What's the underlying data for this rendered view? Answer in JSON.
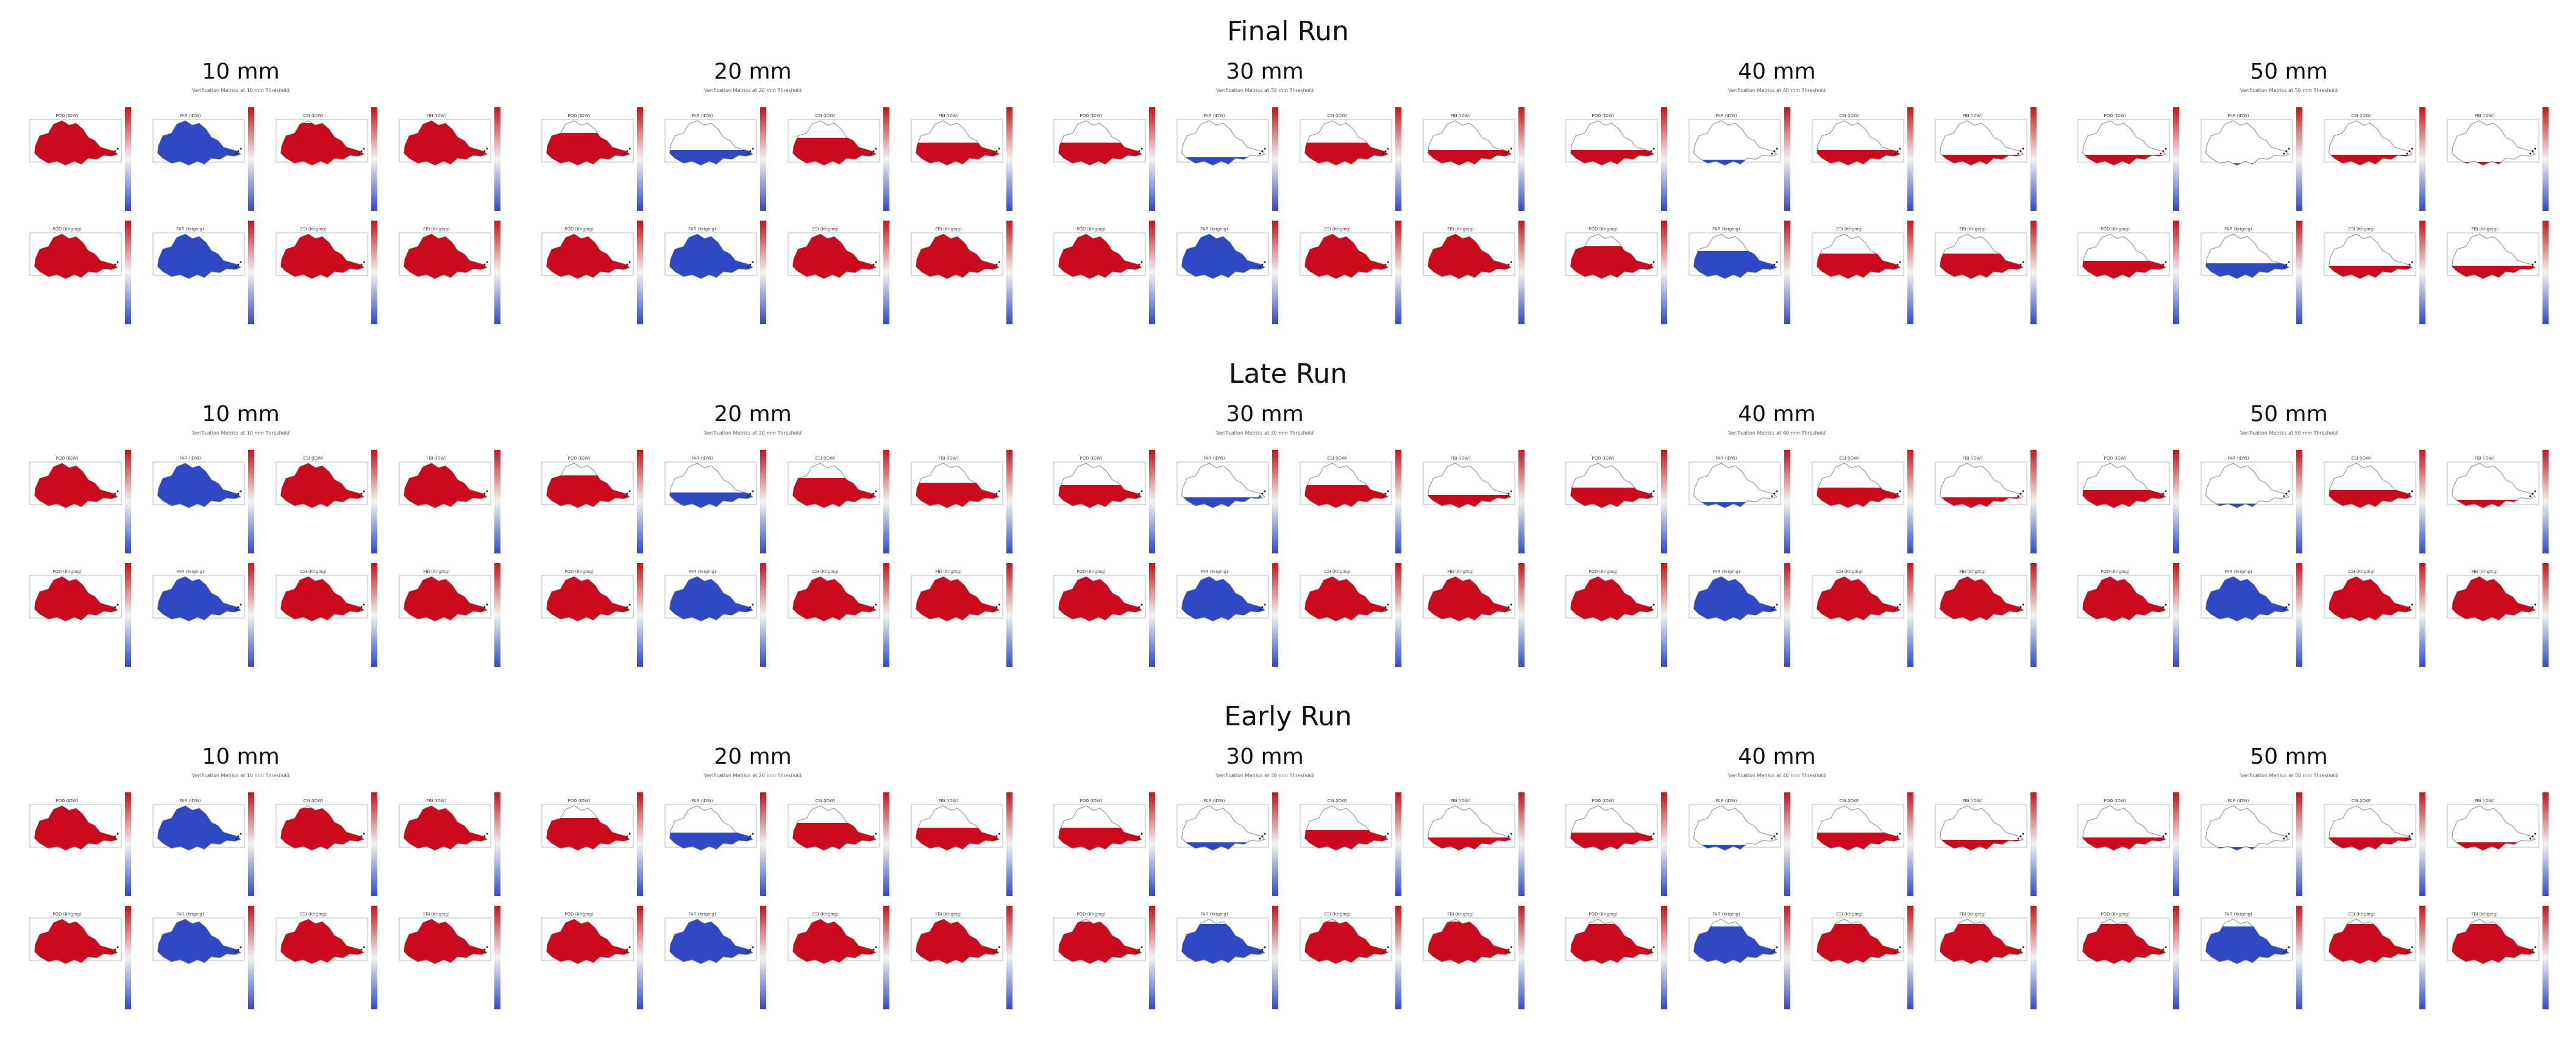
{
  "runs": [
    {
      "title": "Final Run"
    },
    {
      "title": "Late Run"
    },
    {
      "title": "Early Run"
    }
  ],
  "thresholds": [
    {
      "label": "10 mm",
      "subtitle": "Verification Metrics at 10 mm Threshold"
    },
    {
      "label": "20 mm",
      "subtitle": "Verification Metrics at 20 mm Threshold"
    },
    {
      "label": "30 mm",
      "subtitle": "Verification Metrics at 30 mm Threshold"
    },
    {
      "label": "40 mm",
      "subtitle": "Verification Metrics at 40 mm Threshold"
    },
    {
      "label": "50 mm",
      "subtitle": "Verification Metrics at 50 mm Threshold"
    }
  ],
  "panel_titles": [
    [
      "POD (IDW)",
      "FAR (IDW)",
      "CSI (IDW)",
      "FBI (IDW)"
    ],
    [
      "POD (Kriging)",
      "FAR (Kriging)",
      "CSI (Kriging)",
      "FBI (Kriging)"
    ]
  ],
  "colors": {
    "high": "#cc0a1e",
    "low": "#2f49c4",
    "outline": "#999999",
    "cbar_top": "#c4161c",
    "cbar_mid": "#f2f2f2",
    "cbar_bottom": "#3049c8"
  },
  "panel_fills": {
    "note_scale": "fraction of region shaded: positive = red share, negative = blue share",
    "final": [
      [
        [
          0.95,
          -0.95,
          0.9,
          0.95
        ],
        [
          0.95,
          -0.95,
          0.95,
          0.95
        ]
      ],
      [
        [
          0.7,
          -0.35,
          0.6,
          0.5
        ],
        [
          0.95,
          -0.95,
          0.95,
          0.95
        ]
      ],
      [
        [
          0.5,
          -0.2,
          0.5,
          0.35
        ],
        [
          0.95,
          -0.95,
          0.95,
          0.95
        ]
      ],
      [
        [
          0.35,
          -0.15,
          0.35,
          0.25
        ],
        [
          0.7,
          -0.6,
          0.55,
          0.55
        ]
      ],
      [
        [
          0.25,
          -0.08,
          0.25,
          0.1
        ],
        [
          0.4,
          -0.35,
          0.3,
          0.3
        ]
      ]
    ],
    "late": [
      [
        [
          0.95,
          -0.95,
          0.95,
          0.95
        ],
        [
          0.95,
          -0.95,
          0.95,
          0.95
        ]
      ],
      [
        [
          0.7,
          -0.35,
          0.65,
          0.55
        ],
        [
          0.95,
          -0.95,
          0.95,
          0.95
        ]
      ],
      [
        [
          0.5,
          -0.25,
          0.5,
          0.3
        ],
        [
          0.95,
          -0.95,
          0.95,
          0.95
        ]
      ],
      [
        [
          0.45,
          -0.15,
          0.45,
          0.25
        ],
        [
          0.95,
          -0.95,
          0.95,
          0.95
        ]
      ],
      [
        [
          0.4,
          -0.12,
          0.4,
          0.2
        ],
        [
          0.95,
          -0.95,
          0.95,
          0.95
        ]
      ]
    ],
    "early": [
      [
        [
          0.95,
          -0.95,
          0.9,
          0.95
        ],
        [
          0.95,
          -0.95,
          0.95,
          0.95
        ]
      ],
      [
        [
          0.7,
          -0.4,
          0.6,
          0.5
        ],
        [
          0.95,
          -0.95,
          0.95,
          0.95
        ]
      ],
      [
        [
          0.5,
          -0.2,
          0.45,
          0.3
        ],
        [
          0.9,
          -0.85,
          0.9,
          0.9
        ]
      ],
      [
        [
          0.4,
          -0.15,
          0.4,
          0.25
        ],
        [
          0.85,
          -0.8,
          0.85,
          0.85
        ]
      ],
      [
        [
          0.3,
          -0.1,
          0.3,
          0.2
        ],
        [
          0.85,
          -0.8,
          0.85,
          0.85
        ]
      ]
    ]
  }
}
